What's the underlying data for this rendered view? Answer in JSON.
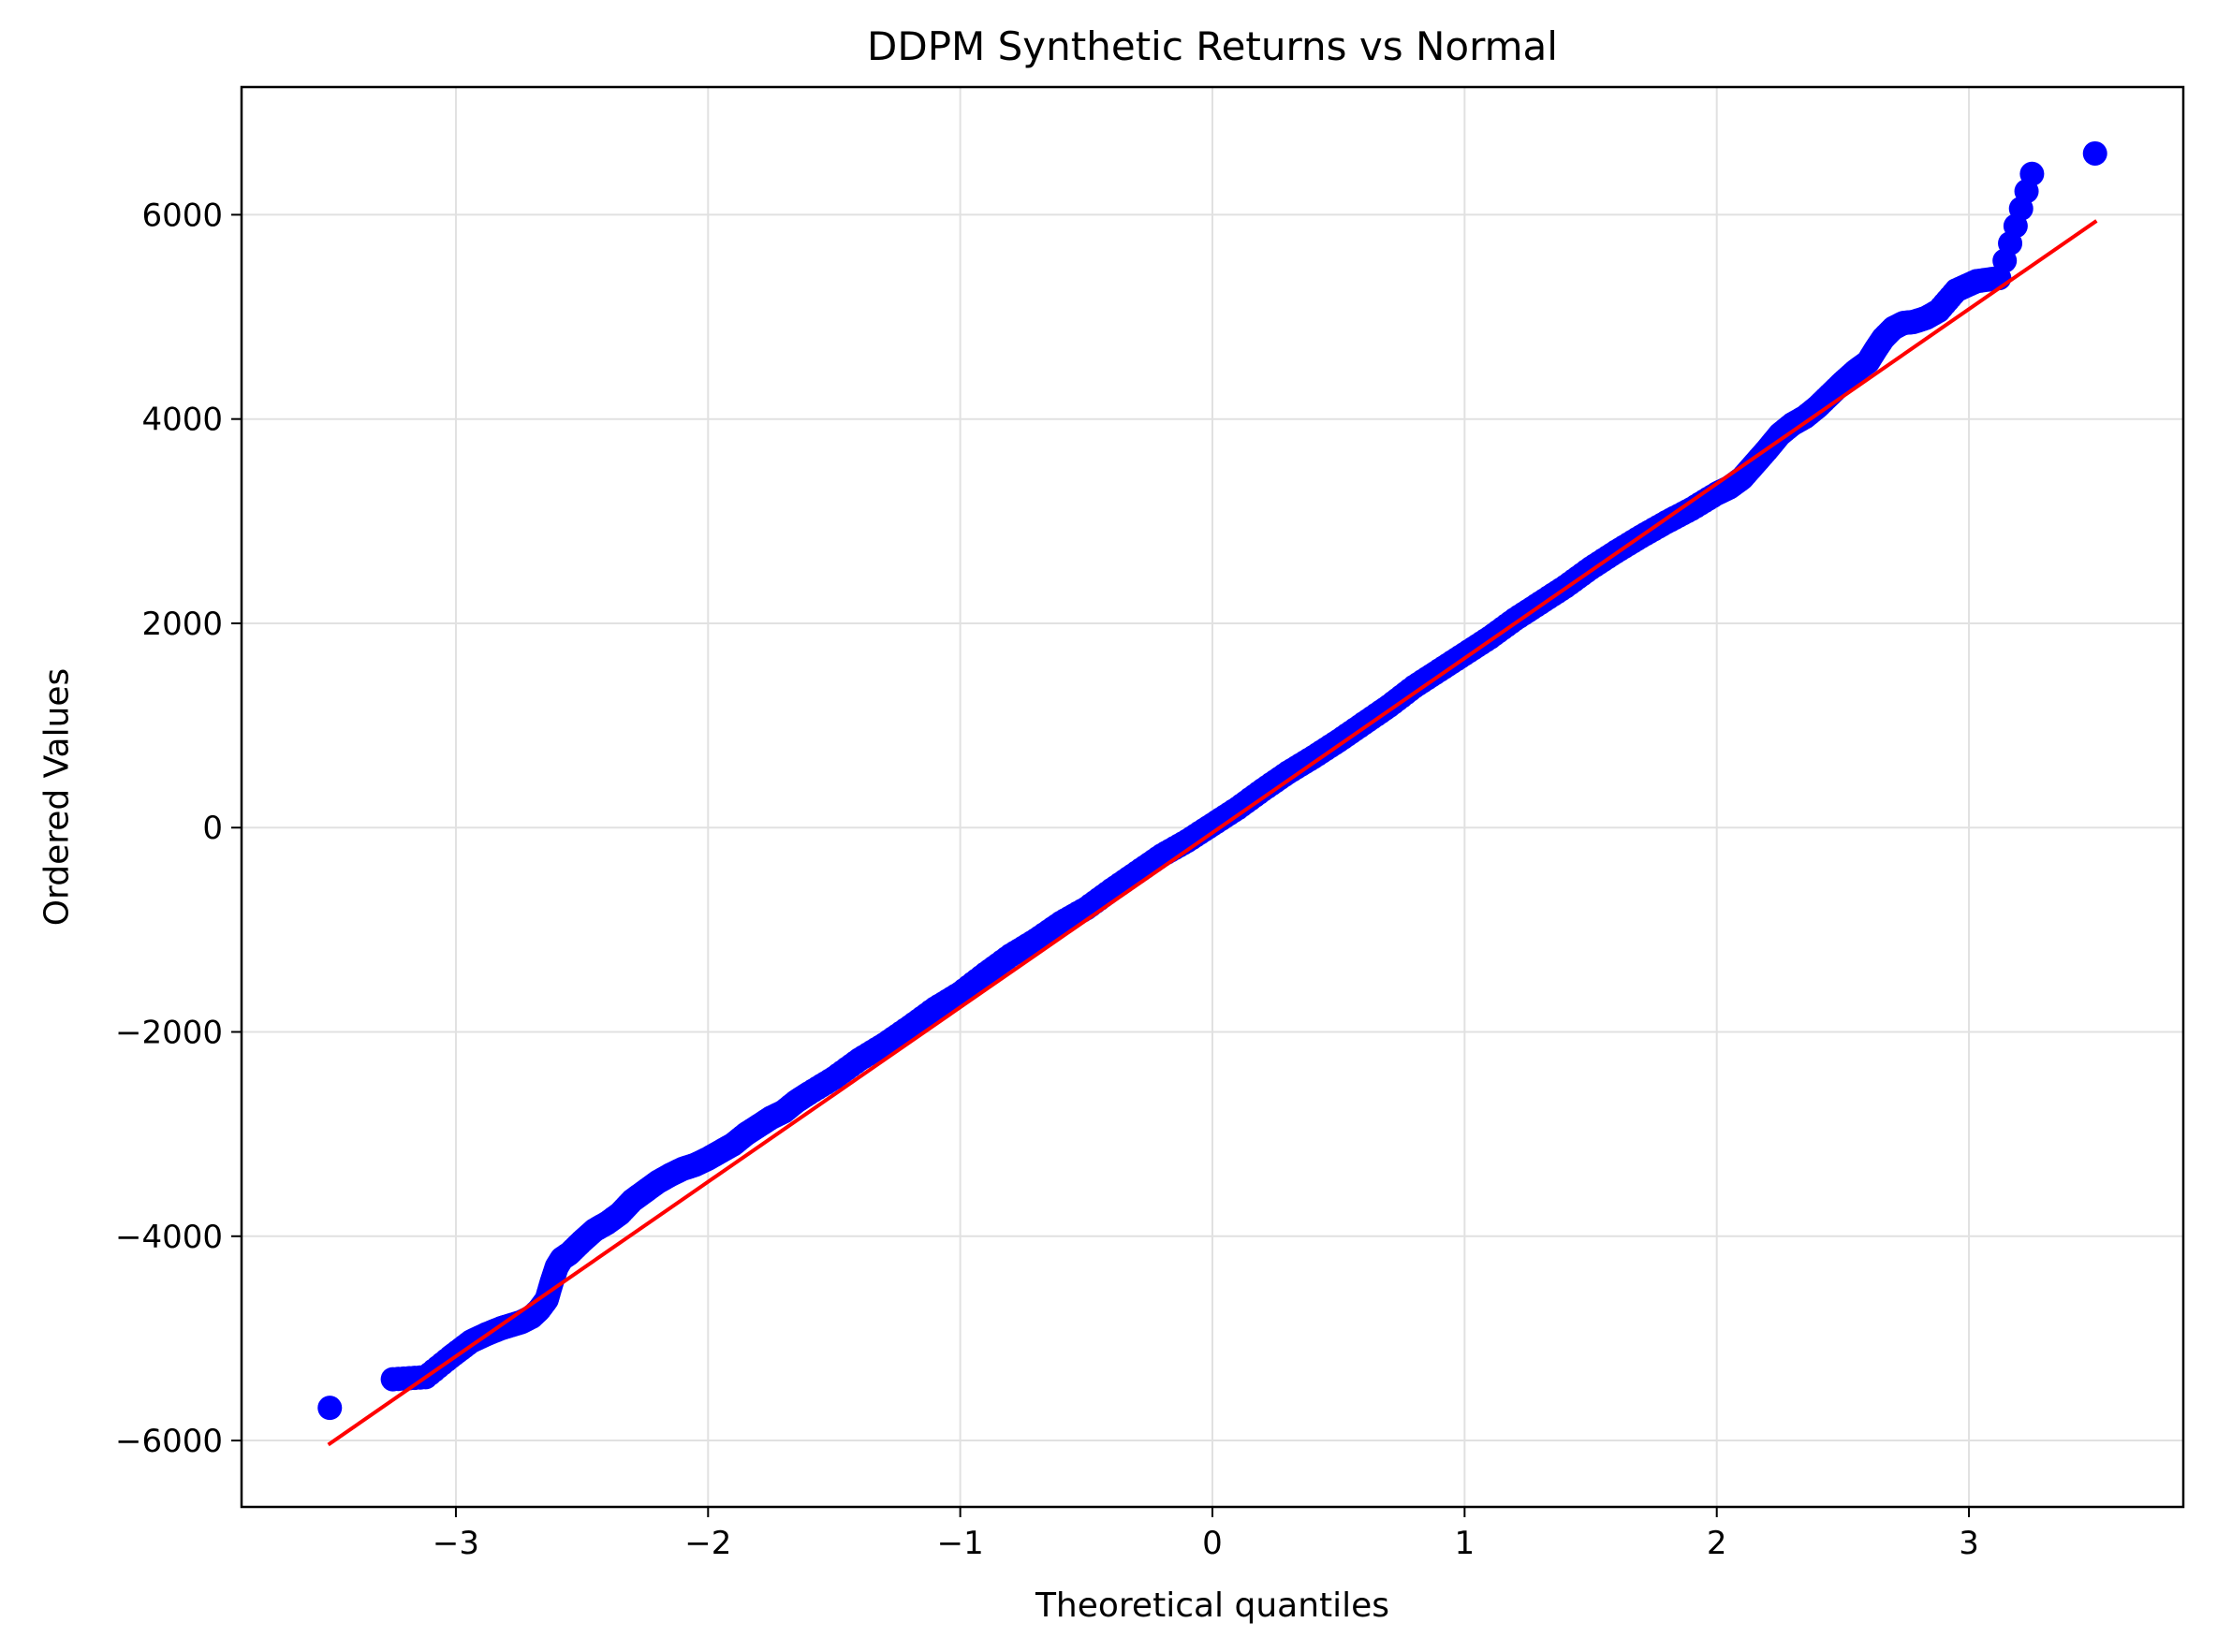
{
  "chart_data": {
    "type": "scatter",
    "title": "DDPM Synthetic Returns vs Normal",
    "xlabel": "Theoretical quantiles",
    "ylabel": "Ordered Values",
    "xlim": [
      -3.85,
      3.85
    ],
    "ylim": [
      -6650,
      7250
    ],
    "grid": true,
    "x_ticks": [
      {
        "value": -3,
        "label": "−3"
      },
      {
        "value": -2,
        "label": "−2"
      },
      {
        "value": -1,
        "label": "−1"
      },
      {
        "value": 0,
        "label": "0"
      },
      {
        "value": 1,
        "label": "1"
      },
      {
        "value": 2,
        "label": "2"
      },
      {
        "value": 3,
        "label": "3"
      }
    ],
    "y_ticks": [
      {
        "value": -6000,
        "label": "−6000"
      },
      {
        "value": -4000,
        "label": "−4000"
      },
      {
        "value": -2000,
        "label": "−2000"
      },
      {
        "value": 0,
        "label": "0"
      },
      {
        "value": 2000,
        "label": "2000"
      },
      {
        "value": 4000,
        "label": "4000"
      },
      {
        "value": 6000,
        "label": "6000"
      }
    ],
    "series": [
      {
        "kind": "points",
        "color": "#0000ff",
        "x": [
          -3.5,
          -3.25,
          -3.12,
          -3.02,
          -2.94,
          -2.88,
          -2.82,
          -2.78,
          -2.74,
          -2.7,
          -2.67,
          -2.64,
          -2.62,
          -2.6,
          -2.58,
          -2.55,
          -2.5,
          -2.45,
          -2.4,
          -2.35,
          -2.3,
          -2.25,
          -2.2,
          -2.15,
          -2.1,
          -2.05,
          -2.0,
          -1.95,
          -1.9,
          -1.85,
          -1.8,
          -1.75,
          -1.7,
          -1.65,
          -1.6,
          -1.5,
          -1.4,
          -1.3,
          -1.2,
          -1.1,
          -1.0,
          -0.9,
          -0.8,
          -0.7,
          -0.6,
          -0.5,
          -0.4,
          -0.3,
          -0.2,
          -0.1,
          0.0,
          0.1,
          0.2,
          0.3,
          0.4,
          0.5,
          0.6,
          0.7,
          0.8,
          0.9,
          1.0,
          1.1,
          1.2,
          1.3,
          1.4,
          1.5,
          1.6,
          1.7,
          1.8,
          1.9,
          2.0,
          2.05,
          2.1,
          2.15,
          2.2,
          2.25,
          2.3,
          2.35,
          2.4,
          2.45,
          2.5,
          2.55,
          2.6,
          2.63,
          2.66,
          2.7,
          2.74,
          2.78,
          2.83,
          2.88,
          2.95,
          3.03,
          3.12,
          3.25,
          3.5
        ],
        "y": [
          -5680,
          -5400,
          -5380,
          -5180,
          -5030,
          -4960,
          -4900,
          -4870,
          -4840,
          -4790,
          -4720,
          -4620,
          -4450,
          -4300,
          -4220,
          -4170,
          -4050,
          -3940,
          -3870,
          -3780,
          -3650,
          -3560,
          -3470,
          -3400,
          -3340,
          -3300,
          -3240,
          -3170,
          -3100,
          -3000,
          -2920,
          -2840,
          -2780,
          -2680,
          -2600,
          -2450,
          -2270,
          -2120,
          -1950,
          -1770,
          -1620,
          -1430,
          -1250,
          -1100,
          -930,
          -790,
          -610,
          -440,
          -270,
          -130,
          30,
          190,
          370,
          540,
          690,
          850,
          1020,
          1190,
          1380,
          1540,
          1700,
          1860,
          2040,
          2200,
          2360,
          2540,
          2700,
          2850,
          2990,
          3120,
          3270,
          3330,
          3420,
          3560,
          3700,
          3850,
          3950,
          4020,
          4120,
          4240,
          4360,
          4470,
          4560,
          4680,
          4790,
          4890,
          4940,
          4950,
          4990,
          5060,
          5260,
          5350,
          5380,
          6400,
          6600
        ]
      },
      {
        "kind": "line",
        "color": "#ff0000",
        "x": [
          -3.5,
          3.5
        ],
        "y": [
          -6030,
          5930
        ]
      }
    ]
  }
}
